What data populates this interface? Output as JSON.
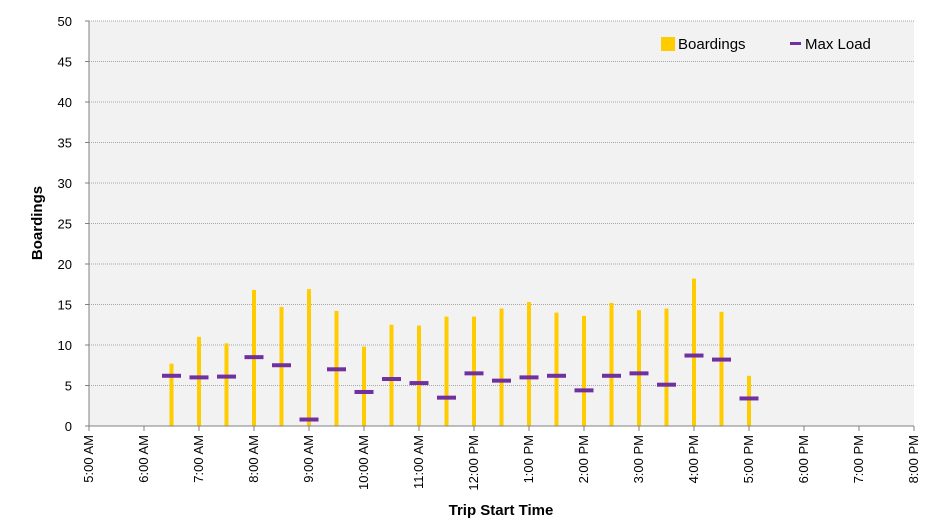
{
  "chart_data": {
    "type": "bar",
    "title": "",
    "xlabel": "Trip Start Time",
    "ylabel": "Boardings",
    "ylim": [
      0,
      50
    ],
    "y_ticks": [
      0,
      5,
      10,
      15,
      20,
      25,
      30,
      35,
      40,
      45,
      50
    ],
    "x_tick_labels": [
      "5:00 AM",
      "6:00 AM",
      "7:00 AM",
      "8:00 AM",
      "9:00 AM",
      "10:00 AM",
      "11:00 AM",
      "12:00 PM",
      "1:00 PM",
      "2:00 PM",
      "3:00 PM",
      "4:00 PM",
      "5:00 PM",
      "6:00 PM",
      "7:00 PM",
      "8:00 PM"
    ],
    "x_hours_range": [
      5,
      20
    ],
    "x": [
      "6:30 AM",
      "7:00 AM",
      "7:30 AM",
      "8:00 AM",
      "8:30 AM",
      "9:00 AM",
      "9:30 AM",
      "10:00 AM",
      "10:30 AM",
      "11:00 AM",
      "11:30 AM",
      "12:00 PM",
      "12:30 PM",
      "1:00 PM",
      "1:30 PM",
      "2:00 PM",
      "2:30 PM",
      "3:00 PM",
      "3:30 PM",
      "4:00 PM",
      "4:30 PM",
      "5:00 PM"
    ],
    "x_hours": [
      6.5,
      7,
      7.5,
      8,
      8.5,
      9,
      9.5,
      10,
      10.5,
      11,
      11.5,
      12,
      12.5,
      13,
      13.5,
      14,
      14.5,
      15,
      15.5,
      16,
      16.5,
      17
    ],
    "series": [
      {
        "name": "Boardings",
        "type": "bar",
        "color": "#FFCC00",
        "values": [
          7.7,
          11.0,
          10.2,
          16.8,
          14.7,
          16.9,
          14.2,
          9.8,
          12.5,
          12.4,
          13.5,
          13.5,
          14.5,
          15.3,
          14.0,
          13.6,
          15.2,
          14.3,
          14.5,
          18.2,
          14.1,
          6.2
        ]
      },
      {
        "name": "Max Load",
        "type": "marker",
        "color": "#7030A0",
        "values": [
          6.2,
          6.0,
          6.1,
          8.5,
          7.5,
          0.8,
          7.0,
          4.2,
          5.8,
          5.3,
          3.5,
          6.5,
          5.6,
          6.0,
          6.2,
          4.4,
          6.2,
          6.5,
          5.1,
          8.7,
          8.2,
          3.4
        ]
      }
    ],
    "grid": true,
    "legend": "top-right",
    "background_color": "#F2F2F2",
    "grid_color": "#A6A6A6"
  }
}
